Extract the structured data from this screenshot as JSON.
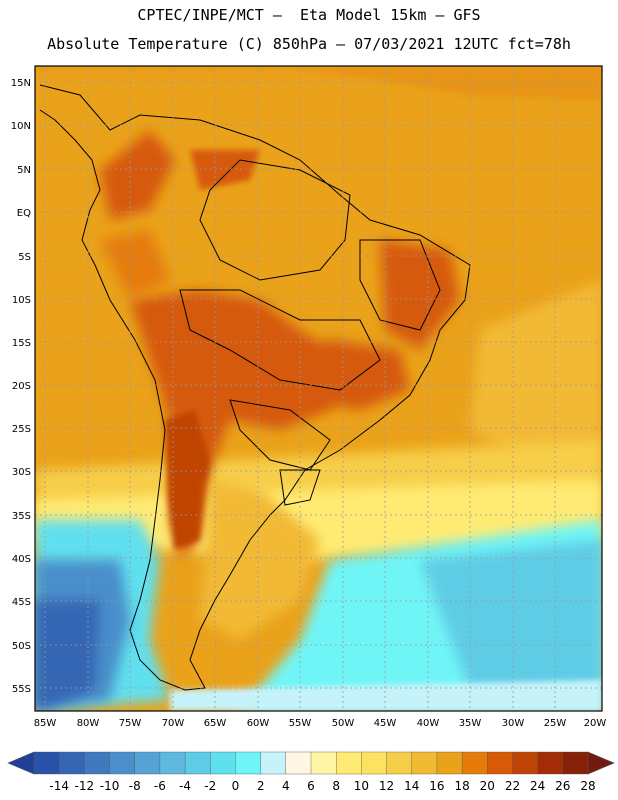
{
  "header": {
    "line1": "CPTEC/INPE/MCT –  Eta Model 15km – GFS",
    "line2": "Absolute Temperature (C) 850hPa – 07/03/2021 12UTC fct=78h"
  },
  "map": {
    "lat_labels": [
      "15N",
      "10N",
      "5N",
      "EQ",
      "5S",
      "10S",
      "15S",
      "20S",
      "25S",
      "30S",
      "35S",
      "40S",
      "45S",
      "50S",
      "55S"
    ],
    "lon_labels": [
      "85W",
      "80W",
      "75W",
      "70W",
      "65W",
      "60W",
      "55W",
      "50W",
      "45W",
      "40W",
      "35W",
      "30W",
      "25W",
      "20W"
    ]
  },
  "colorbar": {
    "labels": [
      "-14",
      "-12",
      "-10",
      "-8",
      "-6",
      "-4",
      "-2",
      "0",
      "2",
      "4",
      "6",
      "8",
      "10",
      "12",
      "14",
      "16",
      "18",
      "20",
      "22",
      "24",
      "26",
      "28"
    ],
    "colors": [
      "#1f3f99",
      "#2a52a8",
      "#3466b4",
      "#3f7ac0",
      "#4a8fcb",
      "#55a3d6",
      "#5fb8e0",
      "#5ecce6",
      "#60e0ee",
      "#6ff5f7",
      "#c6f3fa",
      "#fff7e3",
      "#fff5a5",
      "#ffeb73",
      "#fde262",
      "#f7ce49",
      "#f2b935",
      "#eaa21a",
      "#e57c0a",
      "#d65a08",
      "#c04406",
      "#a32c06",
      "#862008",
      "#731a10"
    ]
  }
}
